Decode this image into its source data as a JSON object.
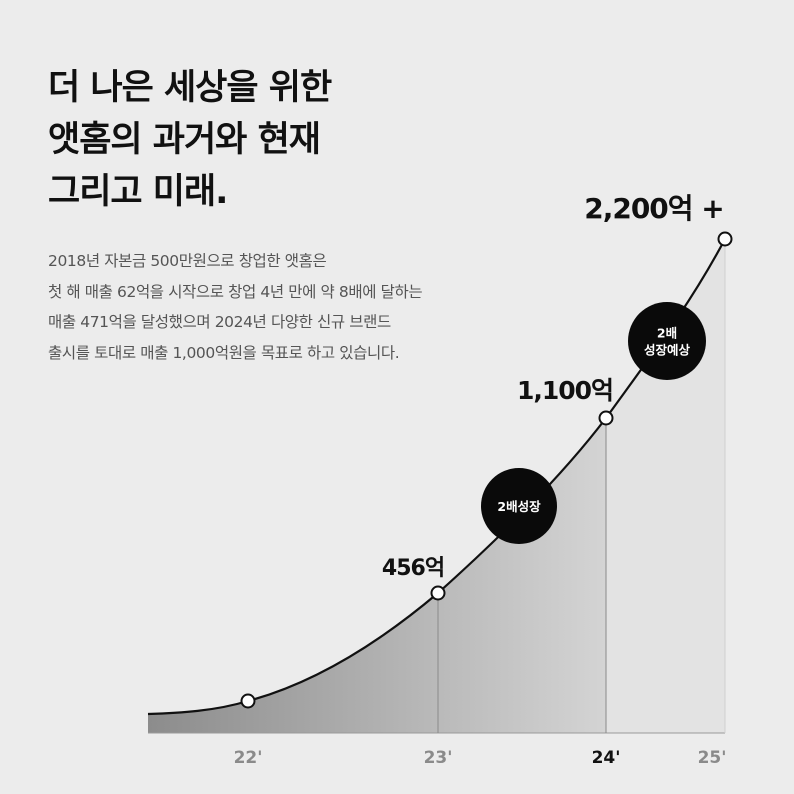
{
  "headline": [
    "더 나은 세상을 위한",
    "앳홈의 과거와 현재",
    "그리고 미래."
  ],
  "description": [
    "2018년 자본금 500만원으로 창업한 앳홈은",
    "첫 해 매출 62억을 시작으로 창업 4년 만에 약 8배에 달하는",
    "매출 471억을 달성했으며 2024년 다양한 신규 브랜드",
    "출시를 토대로 매출 1,000억원을 목표로 하고 있습니다."
  ],
  "chart_data": {
    "type": "area",
    "categories": [
      "22'",
      "23'",
      "24'",
      "25'"
    ],
    "values": [
      null,
      456,
      1100,
      2200
    ],
    "value_labels": [
      "",
      "456억",
      "1,100억",
      "2,200억 +"
    ],
    "highlight_category": "24'",
    "annotations": [
      {
        "text": [
          "2배성장"
        ],
        "between": [
          "23'",
          "24'"
        ]
      },
      {
        "text": [
          "2배",
          "성장예상"
        ],
        "between": [
          "24'",
          "25'"
        ]
      }
    ],
    "colors": {
      "line": "#111111",
      "fill_dark": "#8c8c8c",
      "fill_light": "#d4d4d4",
      "forecast_fill": "#e3e3e3",
      "bubble": "#0a0a0a",
      "tick_muted": "#8a8a8a",
      "tick_highlight": "#111111"
    },
    "grid": false
  }
}
